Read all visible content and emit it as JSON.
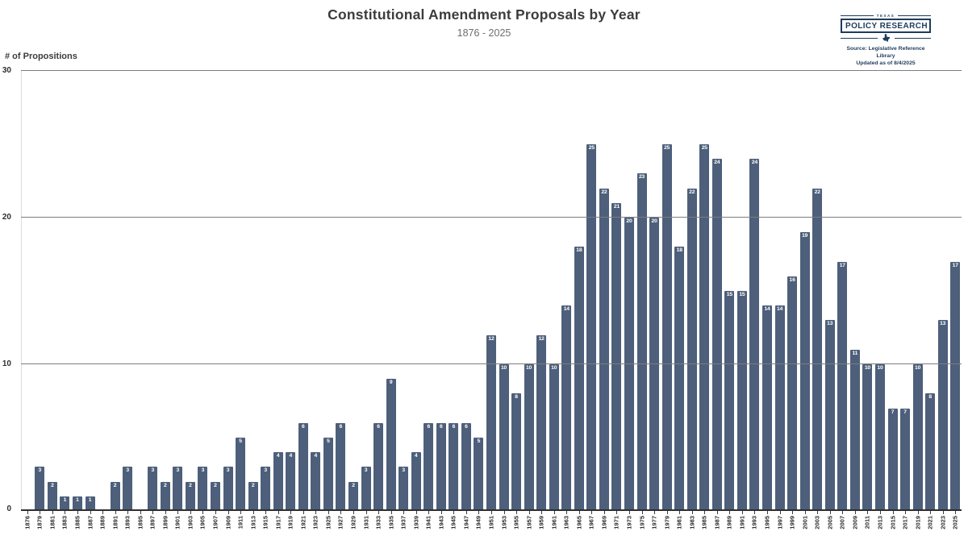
{
  "header": {
    "title": "Constitutional Amendment Proposals by Year",
    "subtitle": "1876 - 2025"
  },
  "logo": {
    "kicker": "TEXAS",
    "name": "POLICY RESEARCH",
    "source_line1": "Source: Legislative Reference Library",
    "source_line2": "Updated as of 8/4/2025",
    "navy": "#1e3c5c"
  },
  "chart_data": {
    "type": "bar",
    "title": "Constitutional Amendment Proposals by Year",
    "subtitle": "1876 - 2025",
    "xlabel": "",
    "ylabel": "# of Propositions",
    "ylim": [
      0,
      30
    ],
    "y_ticks": [
      0,
      10,
      20,
      30
    ],
    "grid": "horizontal",
    "bar_color": "#4d5f7a",
    "value_label_color": "#ffffff",
    "categories": [
      "1876",
      "1879",
      "1881",
      "1883",
      "1885",
      "1887",
      "1889",
      "1891",
      "1893",
      "1895",
      "1897",
      "1899",
      "1901",
      "1903",
      "1905",
      "1907",
      "1909",
      "1911",
      "1913",
      "1915",
      "1917",
      "1919",
      "1921",
      "1923",
      "1925",
      "1927",
      "1929",
      "1931",
      "1933",
      "1935",
      "1937",
      "1939",
      "1941",
      "1943",
      "1945",
      "1947",
      "1949",
      "1951",
      "1953",
      "1955",
      "1957",
      "1959",
      "1961",
      "1963",
      "1965",
      "1967",
      "1969",
      "1971",
      "1973",
      "1975",
      "1977",
      "1979",
      "1981",
      "1983",
      "1985",
      "1987",
      "1989",
      "1991",
      "1993",
      "1995",
      "1997",
      "1999",
      "2001",
      "2003",
      "2005",
      "2007",
      "2009",
      "2011",
      "2013",
      "2015",
      "2017",
      "2019",
      "2021",
      "2023",
      "2025"
    ],
    "values": [
      0,
      3,
      2,
      1,
      1,
      1,
      0,
      2,
      3,
      0,
      3,
      2,
      3,
      2,
      3,
      2,
      3,
      5,
      2,
      3,
      4,
      4,
      6,
      4,
      5,
      6,
      2,
      3,
      6,
      9,
      3,
      4,
      6,
      6,
      6,
      6,
      5,
      12,
      10,
      8,
      10,
      12,
      10,
      14,
      18,
      25,
      22,
      21,
      20,
      23,
      20,
      25,
      18,
      22,
      25,
      24,
      15,
      15,
      24,
      14,
      14,
      16,
      19,
      22,
      13,
      17,
      11,
      10,
      10,
      7,
      7,
      10,
      8,
      13,
      17
    ]
  }
}
